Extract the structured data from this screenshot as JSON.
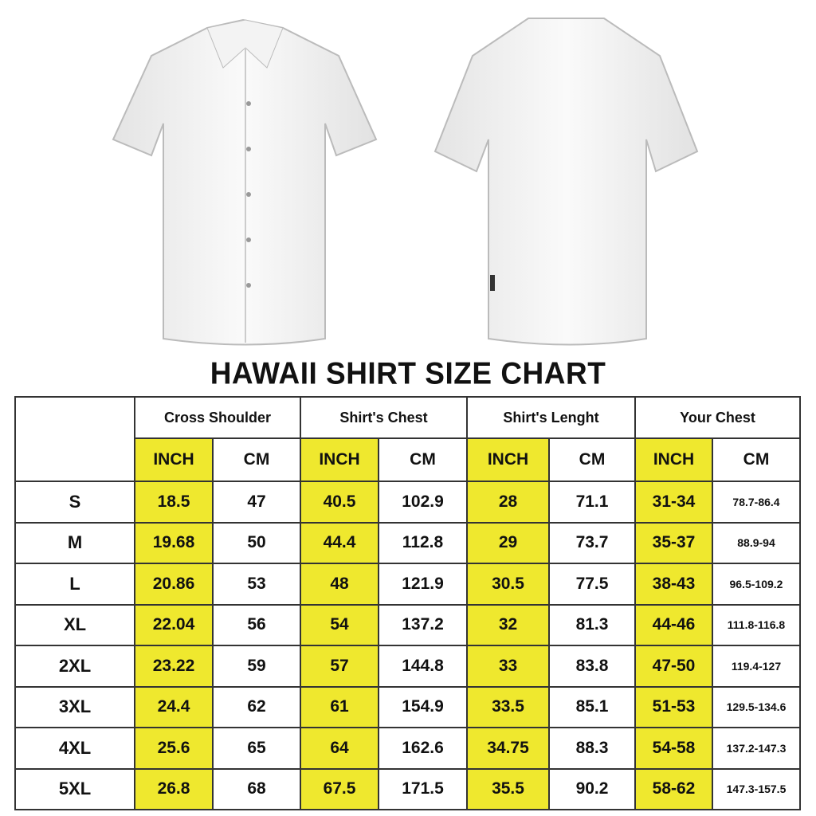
{
  "images": {
    "front": "white-shirt-front",
    "back": "white-shirt-back"
  },
  "title": "HAWAII SHIRT SIZE CHART",
  "colors": {
    "highlight": "#efe82e",
    "border": "#333333"
  },
  "groups": [
    "Cross Shoulder",
    "Shirt's Chest",
    "Shirt's Lenght",
    "Your Chest"
  ],
  "units": [
    "INCH",
    "CM"
  ],
  "rows": [
    {
      "size": "S",
      "values": [
        "18.5",
        "47",
        "40.5",
        "102.9",
        "28",
        "71.1",
        "31-34",
        "78.7-86.4"
      ]
    },
    {
      "size": "M",
      "values": [
        "19.68",
        "50",
        "44.4",
        "112.8",
        "29",
        "73.7",
        "35-37",
        "88.9-94"
      ]
    },
    {
      "size": "L",
      "values": [
        "20.86",
        "53",
        "48",
        "121.9",
        "30.5",
        "77.5",
        "38-43",
        "96.5-109.2"
      ]
    },
    {
      "size": "XL",
      "values": [
        "22.04",
        "56",
        "54",
        "137.2",
        "32",
        "81.3",
        "44-46",
        "111.8-116.8"
      ]
    },
    {
      "size": "2XL",
      "values": [
        "23.22",
        "59",
        "57",
        "144.8",
        "33",
        "83.8",
        "47-50",
        "119.4-127"
      ]
    },
    {
      "size": "3XL",
      "values": [
        "24.4",
        "62",
        "61",
        "154.9",
        "33.5",
        "85.1",
        "51-53",
        "129.5-134.6"
      ]
    },
    {
      "size": "4XL",
      "values": [
        "25.6",
        "65",
        "64",
        "162.6",
        "34.75",
        "88.3",
        "54-58",
        "137.2-147.3"
      ]
    },
    {
      "size": "5XL",
      "values": [
        "26.8",
        "68",
        "67.5",
        "171.5",
        "35.5",
        "90.2",
        "58-62",
        "147.3-157.5"
      ]
    }
  ]
}
